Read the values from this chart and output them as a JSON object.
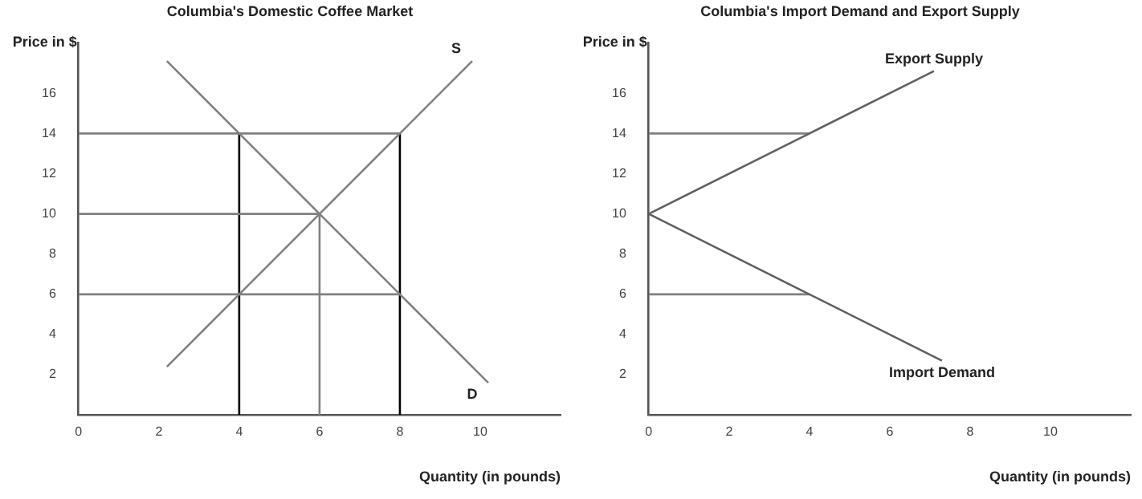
{
  "chart_data": [
    {
      "type": "line",
      "title": "Columbia's Domestic Coffee Market",
      "xlabel": "Quantity (in pounds)",
      "ylabel": "Price in $",
      "xlim": [
        0,
        12
      ],
      "xticks": [
        0,
        2,
        4,
        6,
        8,
        10
      ],
      "ylim": [
        0,
        18.5
      ],
      "yticks": [
        2,
        4,
        6,
        8,
        10,
        12,
        14,
        16
      ],
      "grid": false,
      "legend": false,
      "marker": "none",
      "line_style": "solid",
      "series": [
        {
          "name": "D",
          "color": "#808080",
          "x": [
            2.2,
            4,
            6,
            8,
            10.2
          ],
          "values": [
            17.6,
            14,
            10,
            6,
            1.6
          ]
        },
        {
          "name": "S",
          "color": "#808080",
          "x": [
            2.2,
            4,
            6,
            8,
            9.8
          ],
          "values": [
            2.4,
            6,
            10,
            14,
            17.6
          ]
        },
        {
          "color": "#808080",
          "x": [
            0,
            8
          ],
          "values": [
            14,
            14
          ]
        },
        {
          "color": "#808080",
          "x": [
            0,
            6
          ],
          "values": [
            10,
            10
          ]
        },
        {
          "color": "#808080",
          "x": [
            0,
            8
          ],
          "values": [
            6,
            6
          ]
        },
        {
          "color": "#000000",
          "x": [
            4,
            4
          ],
          "values": [
            0,
            14
          ]
        },
        {
          "color": "#808080",
          "x": [
            6,
            6
          ],
          "values": [
            0,
            10
          ]
        },
        {
          "color": "#000000",
          "x": [
            8,
            8
          ],
          "values": [
            0,
            14
          ]
        }
      ]
    },
    {
      "type": "line",
      "title": "Columbia's Import Demand and Export Supply",
      "xlabel": "Quantity (in pounds)",
      "ylabel": "Price in $",
      "xlim": [
        0,
        12
      ],
      "xticks": [
        0,
        2,
        4,
        6,
        8,
        10
      ],
      "ylim": [
        0,
        18.5
      ],
      "yticks": [
        2,
        4,
        6,
        8,
        10,
        12,
        14,
        16
      ],
      "grid": false,
      "legend": false,
      "marker": "none",
      "line_style": "solid",
      "series": [
        {
          "name": "Export Supply",
          "color": "#606060",
          "x": [
            0,
            4,
            7.1
          ],
          "values": [
            10,
            14,
            17.1
          ]
        },
        {
          "name": "Import Demand",
          "color": "#606060",
          "x": [
            0,
            4,
            7.3
          ],
          "values": [
            10,
            6,
            2.7
          ]
        },
        {
          "color": "#808080",
          "x": [
            0,
            4
          ],
          "values": [
            14,
            14
          ]
        },
        {
          "color": "#808080",
          "x": [
            0,
            4
          ],
          "values": [
            6,
            6
          ]
        }
      ]
    }
  ]
}
